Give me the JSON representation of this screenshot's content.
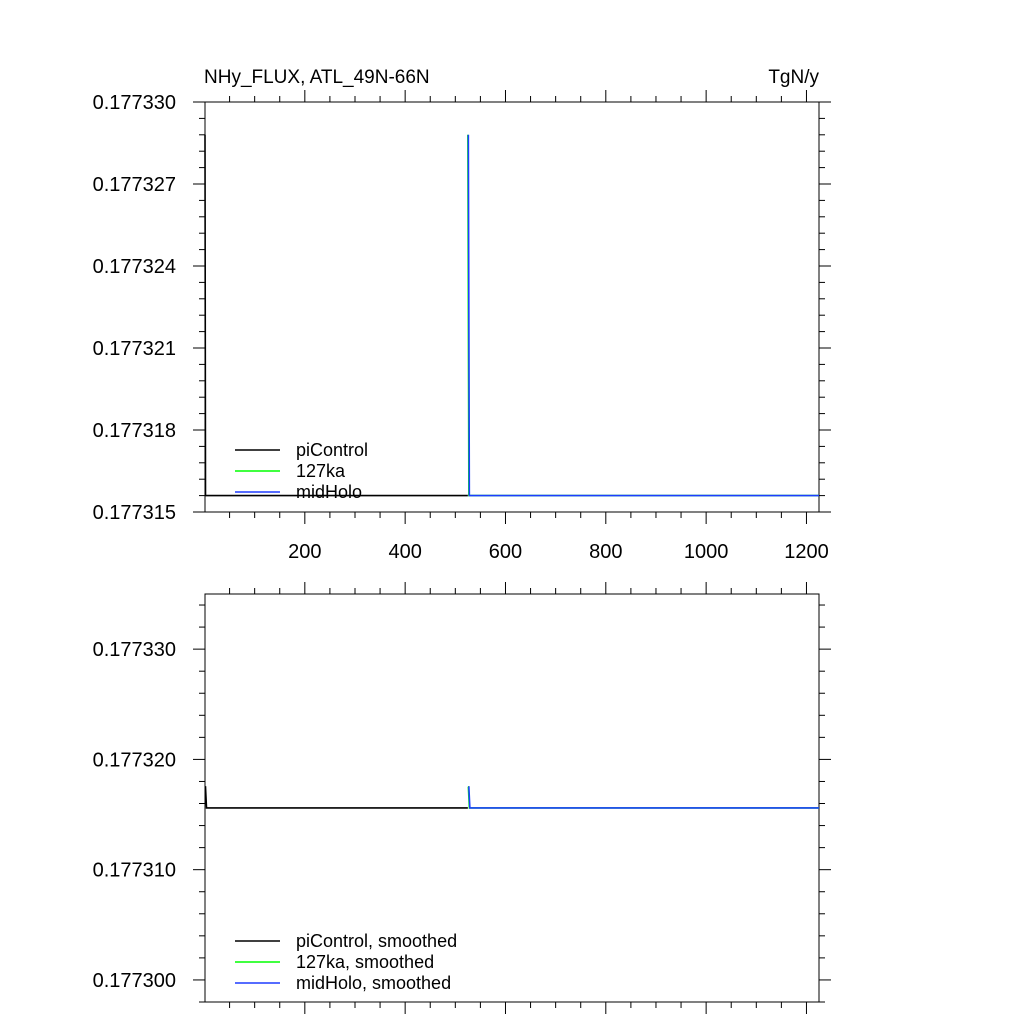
{
  "chart_data": [
    {
      "type": "line",
      "title_left": "NHy_FLUX, ATL_49N-66N",
      "title_right": "TgN/y",
      "xlim": [
        1,
        1225
      ],
      "ylim": [
        0.177315,
        0.17733
      ],
      "xticks": [
        200,
        400,
        600,
        800,
        1000,
        1200
      ],
      "xtick_labels": [
        "200",
        "400",
        "600",
        "800",
        "1000",
        "1200"
      ],
      "yticks": [
        0.177315,
        0.177318,
        0.177321,
        0.177324,
        0.177327,
        0.17733
      ],
      "ytick_labels": [
        "0.177315",
        "0.177318",
        "0.177321",
        "0.177324",
        "0.177327",
        "0.177330"
      ],
      "legend_position": "bottom-left",
      "series": [
        {
          "name": "piControl",
          "color": "#000000",
          "x": [
            1,
            1,
            2,
            525
          ],
          "y": [
            0.1773288,
            0.1773288,
            0.1773156,
            0.1773156
          ]
        },
        {
          "name": "127ka",
          "color": "#00ff00",
          "x": [
            525,
            525,
            527,
            1225
          ],
          "y": [
            0.1773288,
            0.1773288,
            0.1773156,
            0.1773156
          ]
        },
        {
          "name": "midHolo",
          "color": "#1e3cff",
          "x": [
            526,
            526,
            528,
            1225
          ],
          "y": [
            0.1773288,
            0.1773288,
            0.1773156,
            0.1773156
          ]
        }
      ]
    },
    {
      "type": "line",
      "xlim": [
        1,
        1225
      ],
      "ylim": [
        0.177298,
        0.177335
      ],
      "xticks": [
        200,
        400,
        600,
        800,
        1000,
        1200
      ],
      "yticks": [
        0.1773,
        0.17731,
        0.17732,
        0.17733
      ],
      "ytick_labels": [
        "0.177300",
        "0.177310",
        "0.177320",
        "0.177330"
      ],
      "legend_position": "bottom-left",
      "series": [
        {
          "name": "piControl, smoothed",
          "color": "#000000",
          "x": [
            1,
            2,
            4,
            525
          ],
          "y": [
            0.1773175,
            0.1773175,
            0.1773156,
            0.1773156
          ]
        },
        {
          "name": "127ka, smoothed",
          "color": "#00ff00",
          "x": [
            525,
            526,
            528,
            1225
          ],
          "y": [
            0.1773175,
            0.1773175,
            0.1773156,
            0.1773156
          ]
        },
        {
          "name": "midHolo, smoothed",
          "color": "#1e3cff",
          "x": [
            526,
            527,
            529,
            1225
          ],
          "y": [
            0.1773175,
            0.1773175,
            0.1773156,
            0.1773156
          ]
        }
      ]
    }
  ]
}
